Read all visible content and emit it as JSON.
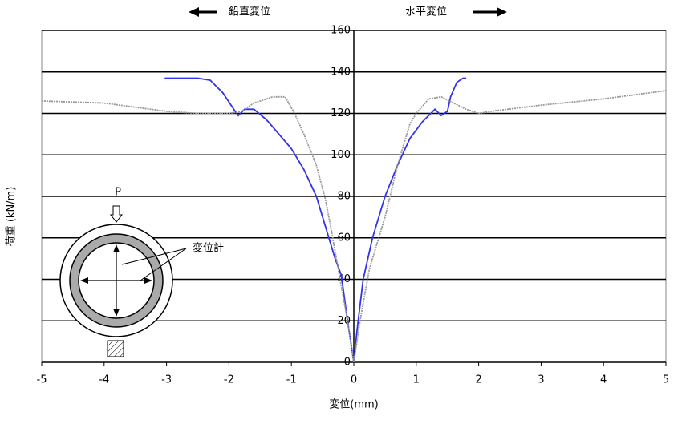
{
  "chart_data": {
    "type": "line",
    "x_label": "変位(mm)",
    "y_label": "荷重 (kN/m)",
    "annotations": {
      "left": "鉛直変位",
      "right": "水平変位",
      "load": "P",
      "gauge": "変位計"
    },
    "xlim": [
      -5,
      5
    ],
    "xticks": [
      -5,
      -4,
      -3,
      -2,
      -1,
      0,
      1,
      2,
      3,
      4,
      5
    ],
    "ylim": [
      0,
      160
    ],
    "yticks": [
      0,
      20,
      40,
      60,
      80,
      100,
      120,
      140,
      160
    ],
    "grid": true,
    "series": [
      {
        "color": "#3333ee",
        "dash": false,
        "x": [
          -3.03,
          -2.5,
          -2.3,
          -2.1,
          -1.9,
          -1.85,
          -1.75,
          -1.6,
          -1.4,
          -1.2,
          -1.0,
          -0.8,
          -0.6,
          -0.45,
          -0.3,
          -0.2,
          -0.1,
          0,
          0.05,
          0.15,
          0.3,
          0.5,
          0.7,
          0.9,
          1.1,
          1.3,
          1.4,
          1.5,
          1.55,
          1.65,
          1.75,
          1.8
        ],
        "values": [
          137,
          137,
          136,
          130,
          121,
          119,
          122,
          122,
          117,
          110,
          103,
          93,
          80,
          65,
          50,
          42,
          20,
          0,
          15,
          40,
          60,
          80,
          95,
          108,
          116,
          122,
          119,
          121,
          128,
          135,
          137,
          137
        ]
      },
      {
        "color": "#999999",
        "dash": true,
        "x": [
          -5,
          -4,
          -3,
          -2.5,
          -2,
          -1.8,
          -1.6,
          -1.3,
          -1.1,
          -0.95,
          -0.8,
          -0.6,
          -0.45,
          -0.35,
          -0.25,
          -0.1,
          0,
          0.1,
          0.25,
          0.5,
          0.7,
          0.9,
          1.0,
          1.2,
          1.4,
          1.6,
          1.8,
          2.0,
          2.2,
          3,
          4,
          5
        ],
        "values": [
          126,
          125,
          121,
          120,
          120,
          121,
          125,
          128,
          128,
          120,
          110,
          95,
          78,
          62,
          45,
          20,
          0,
          20,
          45,
          70,
          95,
          115,
          120,
          127,
          128,
          125,
          122,
          120,
          121,
          124,
          127,
          131
        ]
      }
    ]
  }
}
